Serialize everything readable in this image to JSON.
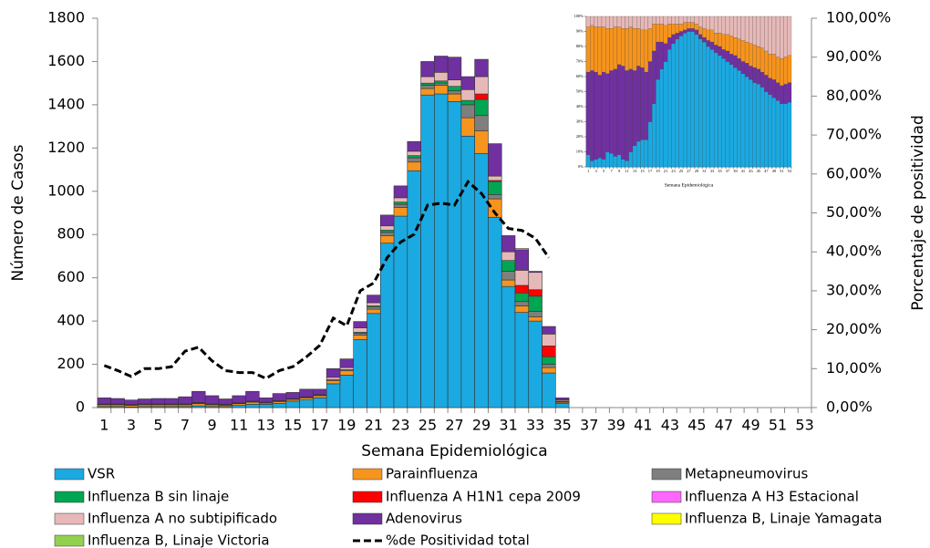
{
  "chart_data": [
    {
      "type": "bar",
      "stacked": true,
      "grid": false,
      "legend": "bottom",
      "xlabel": "Semana Epidemiológica",
      "ylabel": "Número de Casos",
      "y2label": "Porcentaje  de positividad",
      "categories": [
        "1",
        null,
        "3",
        null,
        "5",
        null,
        "7",
        null,
        "9",
        null,
        "11",
        null,
        "13",
        null,
        "15",
        null,
        "17",
        null,
        "19",
        null,
        "21",
        null,
        "23",
        null,
        "25",
        null,
        "27",
        null,
        "29",
        null,
        "31",
        null,
        "33",
        null,
        "35",
        null,
        "37",
        null,
        "39",
        null,
        "41",
        null,
        "43",
        null,
        "45",
        null,
        "47",
        null,
        "49",
        null,
        "51",
        null,
        "53"
      ],
      "ylim": [
        0,
        1800
      ],
      "yticks": [
        0,
        200,
        400,
        600,
        800,
        1000,
        1200,
        1400,
        1600,
        1800
      ],
      "y2lim": [
        0,
        100
      ],
      "y2ticks": [
        {
          "value": 0,
          "label": "0,00%"
        },
        {
          "value": 10,
          "label": "10,00%"
        },
        {
          "value": 20,
          "label": "20,00%"
        },
        {
          "value": 30,
          "label": "30,00%"
        },
        {
          "value": 40,
          "label": "40,00%"
        },
        {
          "value": 50,
          "label": "50,00%"
        },
        {
          "value": 60,
          "label": "60,00%"
        },
        {
          "value": 70,
          "label": "70,00%"
        },
        {
          "value": 80,
          "label": "80,00%"
        },
        {
          "value": 90,
          "label": "90,00%"
        },
        {
          "value": 100,
          "label": "100,00%"
        }
      ],
      "series": [
        {
          "name": "VSR",
          "color": "#1ba9e1",
          "values": [
            5,
            5,
            3,
            5,
            5,
            5,
            5,
            8,
            5,
            5,
            10,
            15,
            15,
            20,
            30,
            35,
            45,
            110,
            150,
            315,
            435,
            760,
            885,
            1095,
            1445,
            1450,
            1415,
            1255,
            1175,
            880,
            560,
            440,
            400,
            160,
            20,
            0,
            0,
            0,
            0,
            0,
            0,
            0,
            0,
            0,
            0,
            0,
            0,
            0,
            0,
            0,
            0,
            0,
            0
          ]
        },
        {
          "name": "Parainfluenza",
          "color": "#f7941d",
          "values": [
            8,
            8,
            7,
            8,
            8,
            8,
            8,
            10,
            8,
            6,
            8,
            10,
            6,
            8,
            8,
            10,
            10,
            15,
            20,
            20,
            20,
            35,
            40,
            40,
            30,
            40,
            35,
            85,
            105,
            85,
            30,
            30,
            20,
            25,
            5,
            0,
            0,
            0,
            0,
            0,
            0,
            0,
            0,
            0,
            0,
            0,
            0,
            0,
            0,
            0,
            0,
            0,
            0
          ]
        },
        {
          "name": "Metapneumovirus",
          "color": "#7f7f7f",
          "values": [
            2,
            2,
            2,
            2,
            2,
            2,
            2,
            3,
            2,
            2,
            2,
            3,
            2,
            2,
            2,
            3,
            3,
            5,
            5,
            8,
            10,
            15,
            15,
            20,
            15,
            10,
            15,
            60,
            70,
            20,
            40,
            20,
            25,
            15,
            3,
            0,
            0,
            0,
            0,
            0,
            0,
            0,
            0,
            0,
            0,
            0,
            0,
            0,
            0,
            0,
            0,
            0,
            0
          ]
        },
        {
          "name": "Influenza B sin linaje",
          "color": "#00a651",
          "values": [
            0,
            0,
            0,
            0,
            0,
            0,
            0,
            0,
            0,
            0,
            0,
            0,
            0,
            0,
            0,
            0,
            0,
            0,
            0,
            5,
            5,
            10,
            10,
            10,
            10,
            10,
            20,
            20,
            75,
            60,
            50,
            40,
            70,
            35,
            2,
            0,
            0,
            0,
            0,
            0,
            0,
            0,
            0,
            0,
            0,
            0,
            0,
            0,
            0,
            0,
            0,
            0,
            0
          ]
        },
        {
          "name": "Influenza A H1N1 cepa 2009",
          "color": "#ff0000",
          "values": [
            0,
            0,
            0,
            0,
            0,
            0,
            0,
            0,
            0,
            0,
            0,
            0,
            0,
            0,
            0,
            0,
            0,
            0,
            0,
            0,
            0,
            0,
            0,
            0,
            0,
            0,
            0,
            0,
            25,
            5,
            0,
            35,
            30,
            50,
            0,
            0,
            0,
            0,
            0,
            0,
            0,
            0,
            0,
            0,
            0,
            0,
            0,
            0,
            0,
            0,
            0,
            0,
            0
          ]
        },
        {
          "name": " Influenza A H3 Estacional",
          "color": "#ff66ff",
          "values": [
            0,
            0,
            0,
            0,
            0,
            0,
            0,
            0,
            0,
            0,
            0,
            0,
            0,
            0,
            0,
            0,
            0,
            0,
            0,
            0,
            0,
            0,
            0,
            0,
            0,
            0,
            0,
            0,
            0,
            0,
            0,
            0,
            0,
            0,
            0,
            0,
            0,
            0,
            0,
            0,
            0,
            0,
            0,
            0,
            0,
            0,
            0,
            0,
            0,
            0,
            0,
            0,
            0
          ]
        },
        {
          "name": "Influenza A no subtipificado",
          "color": "#e6b9b8",
          "values": [
            2,
            2,
            2,
            2,
            2,
            2,
            2,
            2,
            2,
            2,
            2,
            2,
            2,
            2,
            2,
            2,
            2,
            10,
            10,
            20,
            15,
            20,
            20,
            20,
            30,
            40,
            30,
            50,
            80,
            20,
            40,
            70,
            80,
            55,
            5,
            0,
            0,
            0,
            0,
            0,
            0,
            0,
            0,
            0,
            0,
            0,
            0,
            0,
            0,
            0,
            0,
            0,
            0
          ]
        },
        {
          "name": "Adenovirus",
          "color": "#7030a0",
          "values": [
            28,
            25,
            21,
            23,
            25,
            25,
            33,
            52,
            38,
            25,
            33,
            45,
            20,
            33,
            28,
            35,
            25,
            40,
            40,
            30,
            35,
            50,
            55,
            45,
            70,
            75,
            105,
            60,
            80,
            150,
            75,
            95,
            5,
            35,
            10,
            0,
            0,
            0,
            0,
            0,
            0,
            0,
            0,
            0,
            0,
            0,
            0,
            0,
            0,
            0,
            0,
            0,
            0
          ]
        },
        {
          "name": "Influenza B, Linaje Yamagata",
          "color": "#ffff00",
          "values": [
            0,
            0,
            0,
            0,
            0,
            0,
            0,
            0,
            0,
            0,
            0,
            0,
            0,
            0,
            0,
            0,
            0,
            0,
            0,
            0,
            0,
            0,
            0,
            0,
            0,
            0,
            0,
            0,
            0,
            0,
            0,
            5,
            0,
            0,
            0,
            0,
            0,
            0,
            0,
            0,
            0,
            0,
            0,
            0,
            0,
            0,
            0,
            0,
            0,
            0,
            0,
            0,
            0
          ]
        },
        {
          "name": "Influenza B, Linaje Victoria",
          "color": "#92d050",
          "values": [
            0,
            0,
            0,
            0,
            0,
            0,
            0,
            0,
            0,
            0,
            0,
            0,
            0,
            0,
            0,
            0,
            0,
            0,
            0,
            0,
            0,
            0,
            0,
            0,
            0,
            0,
            0,
            0,
            0,
            0,
            0,
            0,
            0,
            0,
            0,
            0,
            0,
            0,
            0,
            0,
            0,
            0,
            0,
            0,
            0,
            0,
            0,
            0,
            0,
            0,
            0,
            0,
            0
          ]
        },
        {
          "name": "%de Positividad total",
          "type": "line",
          "axis": "y2",
          "color": "#000000",
          "dashed": true,
          "values": [
            10.8,
            9.5,
            8,
            10,
            10,
            10.5,
            14.5,
            15.5,
            12,
            9.5,
            9,
            9,
            7.5,
            9.5,
            10.5,
            13,
            16,
            23,
            21,
            30,
            32,
            38.5,
            42.5,
            44.5,
            52,
            52.5,
            52,
            58,
            55,
            50,
            46,
            45.5,
            43.5,
            38.5,
            null,
            null,
            null,
            null,
            null,
            null,
            null,
            null,
            null,
            null,
            null,
            null,
            null,
            null,
            null,
            null,
            null,
            null,
            null
          ]
        }
      ]
    },
    {
      "type": "bar",
      "stacked": true,
      "grid": false,
      "xlabel": "Semana Epidemiológica",
      "categories": [
        "1",
        null,
        "3",
        null,
        "5",
        null,
        "7",
        null,
        "9",
        null,
        "11",
        null,
        "13",
        null,
        "15",
        null,
        "17",
        null,
        "19",
        null,
        "21",
        null,
        "23",
        null,
        "25",
        null,
        "27",
        null,
        "29",
        null,
        "31",
        null,
        "33",
        null,
        "35",
        null,
        "37",
        null,
        "39",
        null,
        "41",
        null,
        "43",
        null,
        "45",
        null,
        "47",
        null,
        "49",
        null,
        "51",
        null,
        "53"
      ],
      "ylim": [
        0,
        100
      ],
      "yticks": [
        {
          "value": 0,
          "label": "0%"
        },
        {
          "value": 10,
          "label": "10%"
        },
        {
          "value": 20,
          "label": "20%"
        },
        {
          "value": 30,
          "label": "30%"
        },
        {
          "value": 40,
          "label": "40%"
        },
        {
          "value": 50,
          "label": "50%"
        },
        {
          "value": 60,
          "label": "60%"
        },
        {
          "value": 70,
          "label": "70%"
        },
        {
          "value": 80,
          "label": "80%"
        },
        {
          "value": 90,
          "label": "90%"
        },
        {
          "value": 100,
          "label": "100%"
        }
      ],
      "series": [
        {
          "color": "#1ba9e1",
          "values": [
            8,
            4,
            5,
            6,
            5,
            10,
            9,
            7,
            8,
            5,
            4,
            10,
            14,
            17,
            18,
            18,
            30,
            42,
            58,
            65,
            70,
            78,
            82,
            85,
            87,
            89,
            90,
            90,
            88,
            85,
            83,
            80,
            78,
            76,
            74,
            72,
            70,
            68,
            66,
            64,
            62,
            60,
            58,
            56,
            55,
            53,
            50,
            48,
            46,
            44,
            42,
            42,
            43
          ]
        },
        {
          "color": "#7030a0",
          "values": [
            55,
            60,
            58,
            55,
            58,
            52,
            55,
            58,
            60,
            62,
            60,
            55,
            50,
            50,
            48,
            45,
            40,
            35,
            25,
            18,
            12,
            8,
            6,
            4,
            3,
            2,
            2,
            2,
            3,
            3,
            3,
            4,
            5,
            5,
            6,
            6,
            7,
            7,
            8,
            8,
            8,
            9,
            9,
            10,
            10,
            10,
            11,
            11,
            12,
            12,
            12,
            13,
            13
          ]
        },
        {
          "color": "#f7941d",
          "values": [
            30,
            30,
            30,
            32,
            30,
            30,
            28,
            28,
            25,
            25,
            28,
            28,
            28,
            25,
            25,
            28,
            22,
            18,
            12,
            12,
            12,
            9,
            7,
            6,
            5,
            5,
            4,
            4,
            4,
            5,
            6,
            7,
            8,
            8,
            9,
            10,
            11,
            12,
            12,
            13,
            14,
            14,
            15,
            15,
            15,
            16,
            16,
            16,
            17,
            17,
            18,
            18,
            18
          ]
        },
        {
          "color": "#e6b9b8",
          "values": [
            7,
            6,
            7,
            7,
            7,
            8,
            8,
            7,
            7,
            8,
            8,
            7,
            8,
            8,
            9,
            9,
            8,
            5,
            5,
            5,
            6,
            5,
            5,
            5,
            5,
            4,
            4,
            4,
            5,
            7,
            8,
            9,
            9,
            11,
            11,
            12,
            12,
            13,
            14,
            15,
            16,
            17,
            18,
            19,
            20,
            21,
            23,
            25,
            25,
            27,
            28,
            27,
            26
          ]
        }
      ]
    }
  ]
}
